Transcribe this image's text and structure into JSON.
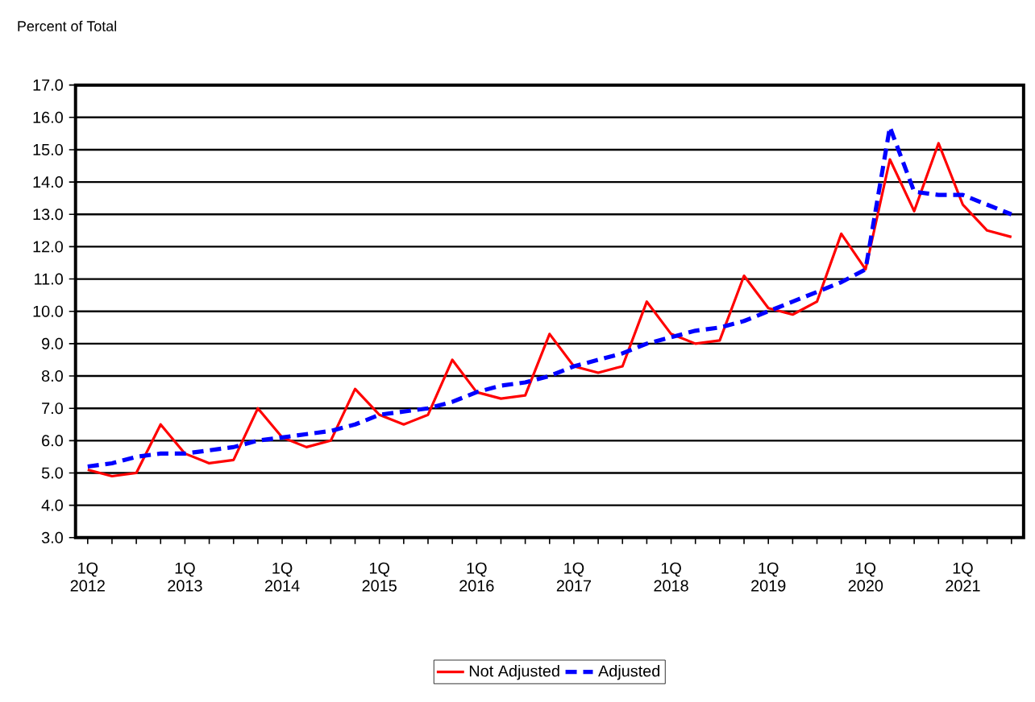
{
  "chart_data": {
    "type": "line",
    "ylabel": "Percent of Total",
    "categories": [
      "1Q 2012",
      null,
      null,
      null,
      "1Q 2013",
      null,
      null,
      null,
      "1Q 2014",
      null,
      null,
      null,
      "1Q 2015",
      null,
      null,
      null,
      "1Q 2016",
      null,
      null,
      null,
      "1Q 2017",
      null,
      null,
      null,
      "1Q 2018",
      null,
      null,
      null,
      "1Q 2019",
      null,
      null,
      null,
      "1Q 2020",
      null,
      null,
      null,
      "1Q 2021",
      null,
      null
    ],
    "series": [
      {
        "name": "Not Adjusted",
        "color": "#ff0000",
        "line_style": "solid",
        "values": [
          5.1,
          4.9,
          5.0,
          6.5,
          5.6,
          5.3,
          5.4,
          7.0,
          6.1,
          5.8,
          6.0,
          7.6,
          6.8,
          6.5,
          6.8,
          8.5,
          7.5,
          7.3,
          7.4,
          9.3,
          8.3,
          8.1,
          8.3,
          10.3,
          9.3,
          9.0,
          9.1,
          11.1,
          10.1,
          9.9,
          10.3,
          12.4,
          11.3,
          14.7,
          13.1,
          15.2,
          13.3,
          12.5,
          12.3
        ]
      },
      {
        "name": "Adjusted",
        "color": "#0000ff",
        "line_style": "dashed",
        "values": [
          5.2,
          5.3,
          5.5,
          5.6,
          5.6,
          5.7,
          5.8,
          6.0,
          6.1,
          6.2,
          6.3,
          6.5,
          6.8,
          6.9,
          7.0,
          7.2,
          7.5,
          7.7,
          7.8,
          8.0,
          8.3,
          8.5,
          8.7,
          9.0,
          9.2,
          9.4,
          9.5,
          9.7,
          10.0,
          10.3,
          10.6,
          10.9,
          11.3,
          15.7,
          13.7,
          13.6,
          13.6,
          13.3,
          13.0
        ]
      }
    ],
    "ylim": [
      3,
      17
    ],
    "yticks": [
      {
        "value": 3,
        "label": "3.0"
      },
      {
        "value": 4,
        "label": "4.0"
      },
      {
        "value": 5,
        "label": "5.0"
      },
      {
        "value": 6,
        "label": "6.0"
      },
      {
        "value": 7,
        "label": "7.0"
      },
      {
        "value": 8,
        "label": "8.0"
      },
      {
        "value": 9,
        "label": "9.0"
      },
      {
        "value": 10,
        "label": "10.0"
      },
      {
        "value": 11,
        "label": "11.0"
      },
      {
        "value": 12,
        "label": "12.0"
      },
      {
        "value": 13,
        "label": "13.0"
      },
      {
        "value": 14,
        "label": "14.0"
      },
      {
        "value": 15,
        "label": "15.0"
      },
      {
        "value": 16,
        "label": "16.0"
      },
      {
        "value": 17,
        "label": "17.0"
      }
    ],
    "grid": "y",
    "legend": "bottom",
    "marker": "none"
  }
}
